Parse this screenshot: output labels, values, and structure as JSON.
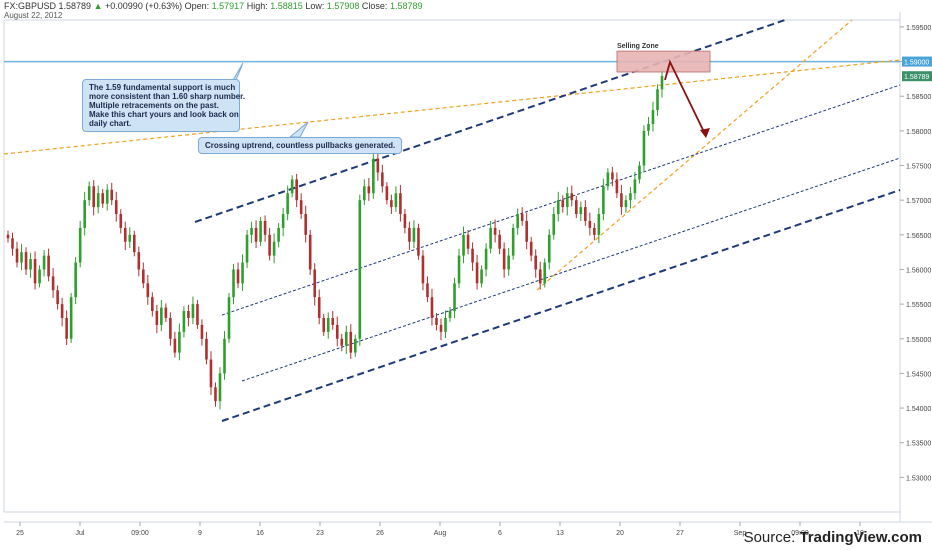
{
  "header": {
    "symbol": "FX:GBPUSD",
    "last": "1.58789",
    "change": "+0.00990 (+0.63%)",
    "open_label": "Open:",
    "open": "1.57917",
    "high_label": "High:",
    "high": "1.58815",
    "low_label": "Low:",
    "low": "1.57908",
    "close_label": "Close:",
    "close": "1.58789",
    "date": "August 22, 2012"
  },
  "chart_data": {
    "type": "candlestick",
    "ylim": [
      1.525,
      1.596
    ],
    "y_ticks": [
      "1.59500",
      "1.59000",
      "1.58500",
      "1.58000",
      "1.57500",
      "1.57000",
      "1.56500",
      "1.56000",
      "1.55500",
      "1.55000",
      "1.54500",
      "1.54000",
      "1.53500",
      "1.53000"
    ],
    "y_tick_values": [
      1.595,
      1.59,
      1.585,
      1.58,
      1.575,
      1.57,
      1.565,
      1.56,
      1.555,
      1.55,
      1.545,
      1.54,
      1.535,
      1.53
    ],
    "x_ticks": [
      "25",
      "Jul",
      "09:00",
      "9",
      "16",
      "23",
      "26",
      "Aug",
      "6",
      "13",
      "20",
      "27",
      "Sep",
      "09:00",
      "10"
    ],
    "price_labels": [
      {
        "value": 1.59,
        "text": "1.59000",
        "color": "#4aa3d8"
      },
      {
        "value": 1.58789,
        "text": "1.58789",
        "color": "#3d8f6a"
      }
    ],
    "horizontal_support": 1.59,
    "selling_zone": {
      "label": "Selling Zone",
      "y_low": 1.5885,
      "y_high": 1.5915
    },
    "ohlc_closes": [
      1.5645,
      1.563,
      1.561,
      1.5625,
      1.56,
      1.5615,
      1.558,
      1.56,
      1.562,
      1.559,
      1.557,
      1.555,
      1.553,
      1.55,
      1.556,
      1.561,
      1.566,
      1.57,
      1.572,
      1.569,
      1.571,
      1.5695,
      1.5715,
      1.57,
      1.568,
      1.566,
      1.564,
      1.565,
      1.5625,
      1.56,
      1.558,
      1.556,
      1.554,
      1.552,
      1.5545,
      1.553,
      1.55,
      1.548,
      1.551,
      1.554,
      1.553,
      1.555,
      1.552,
      1.55,
      1.547,
      1.543,
      1.541,
      1.545,
      1.55,
      1.556,
      1.56,
      1.558,
      1.561,
      1.565,
      1.566,
      1.564,
      1.567,
      1.565,
      1.562,
      1.564,
      1.566,
      1.568,
      1.571,
      1.573,
      1.57,
      1.568,
      1.565,
      1.56,
      1.556,
      1.553,
      1.551,
      1.553,
      1.552,
      1.55,
      1.549,
      1.551,
      1.548,
      1.55,
      1.57,
      1.572,
      1.571,
      1.576,
      1.574,
      1.572,
      1.57,
      1.569,
      1.571,
      1.568,
      1.566,
      1.564,
      1.566,
      1.562,
      1.558,
      1.556,
      1.553,
      1.552,
      1.551,
      1.553,
      1.554,
      1.558,
      1.562,
      1.565,
      1.563,
      1.561,
      1.558,
      1.56,
      1.563,
      1.566,
      1.565,
      1.563,
      1.56,
      1.562,
      1.566,
      1.568,
      1.567,
      1.564,
      1.562,
      1.56,
      1.558,
      1.561,
      1.565,
      1.568,
      1.57,
      1.569,
      1.571,
      1.57,
      1.568,
      1.569,
      1.567,
      1.566,
      1.565,
      1.568,
      1.572,
      1.574,
      1.573,
      1.571,
      1.569,
      1.57,
      1.571,
      1.573,
      1.575,
      1.58,
      1.581,
      1.583,
      1.586,
      1.5879
    ]
  },
  "annotations": {
    "note1": [
      "The 1.59 fundamental support is much",
      "more consistent than 1.60 sharp number.",
      "Multiple retracements on the past.",
      "Make this chart yours and look back on",
      "daily chart."
    ],
    "note2": "Crossing uptrend, countless pullbacks generated."
  },
  "footer": {
    "source_prefix": "Source: ",
    "source_brand": "TradingView.com"
  },
  "colors": {
    "up": "#2e9e2e",
    "down": "#b03030",
    "channel": "#1f3a7a",
    "orange": "#f0a020",
    "support": "#6ab4e0",
    "zone_fill": "#e8b4b4",
    "arrow": "#8b1010"
  }
}
